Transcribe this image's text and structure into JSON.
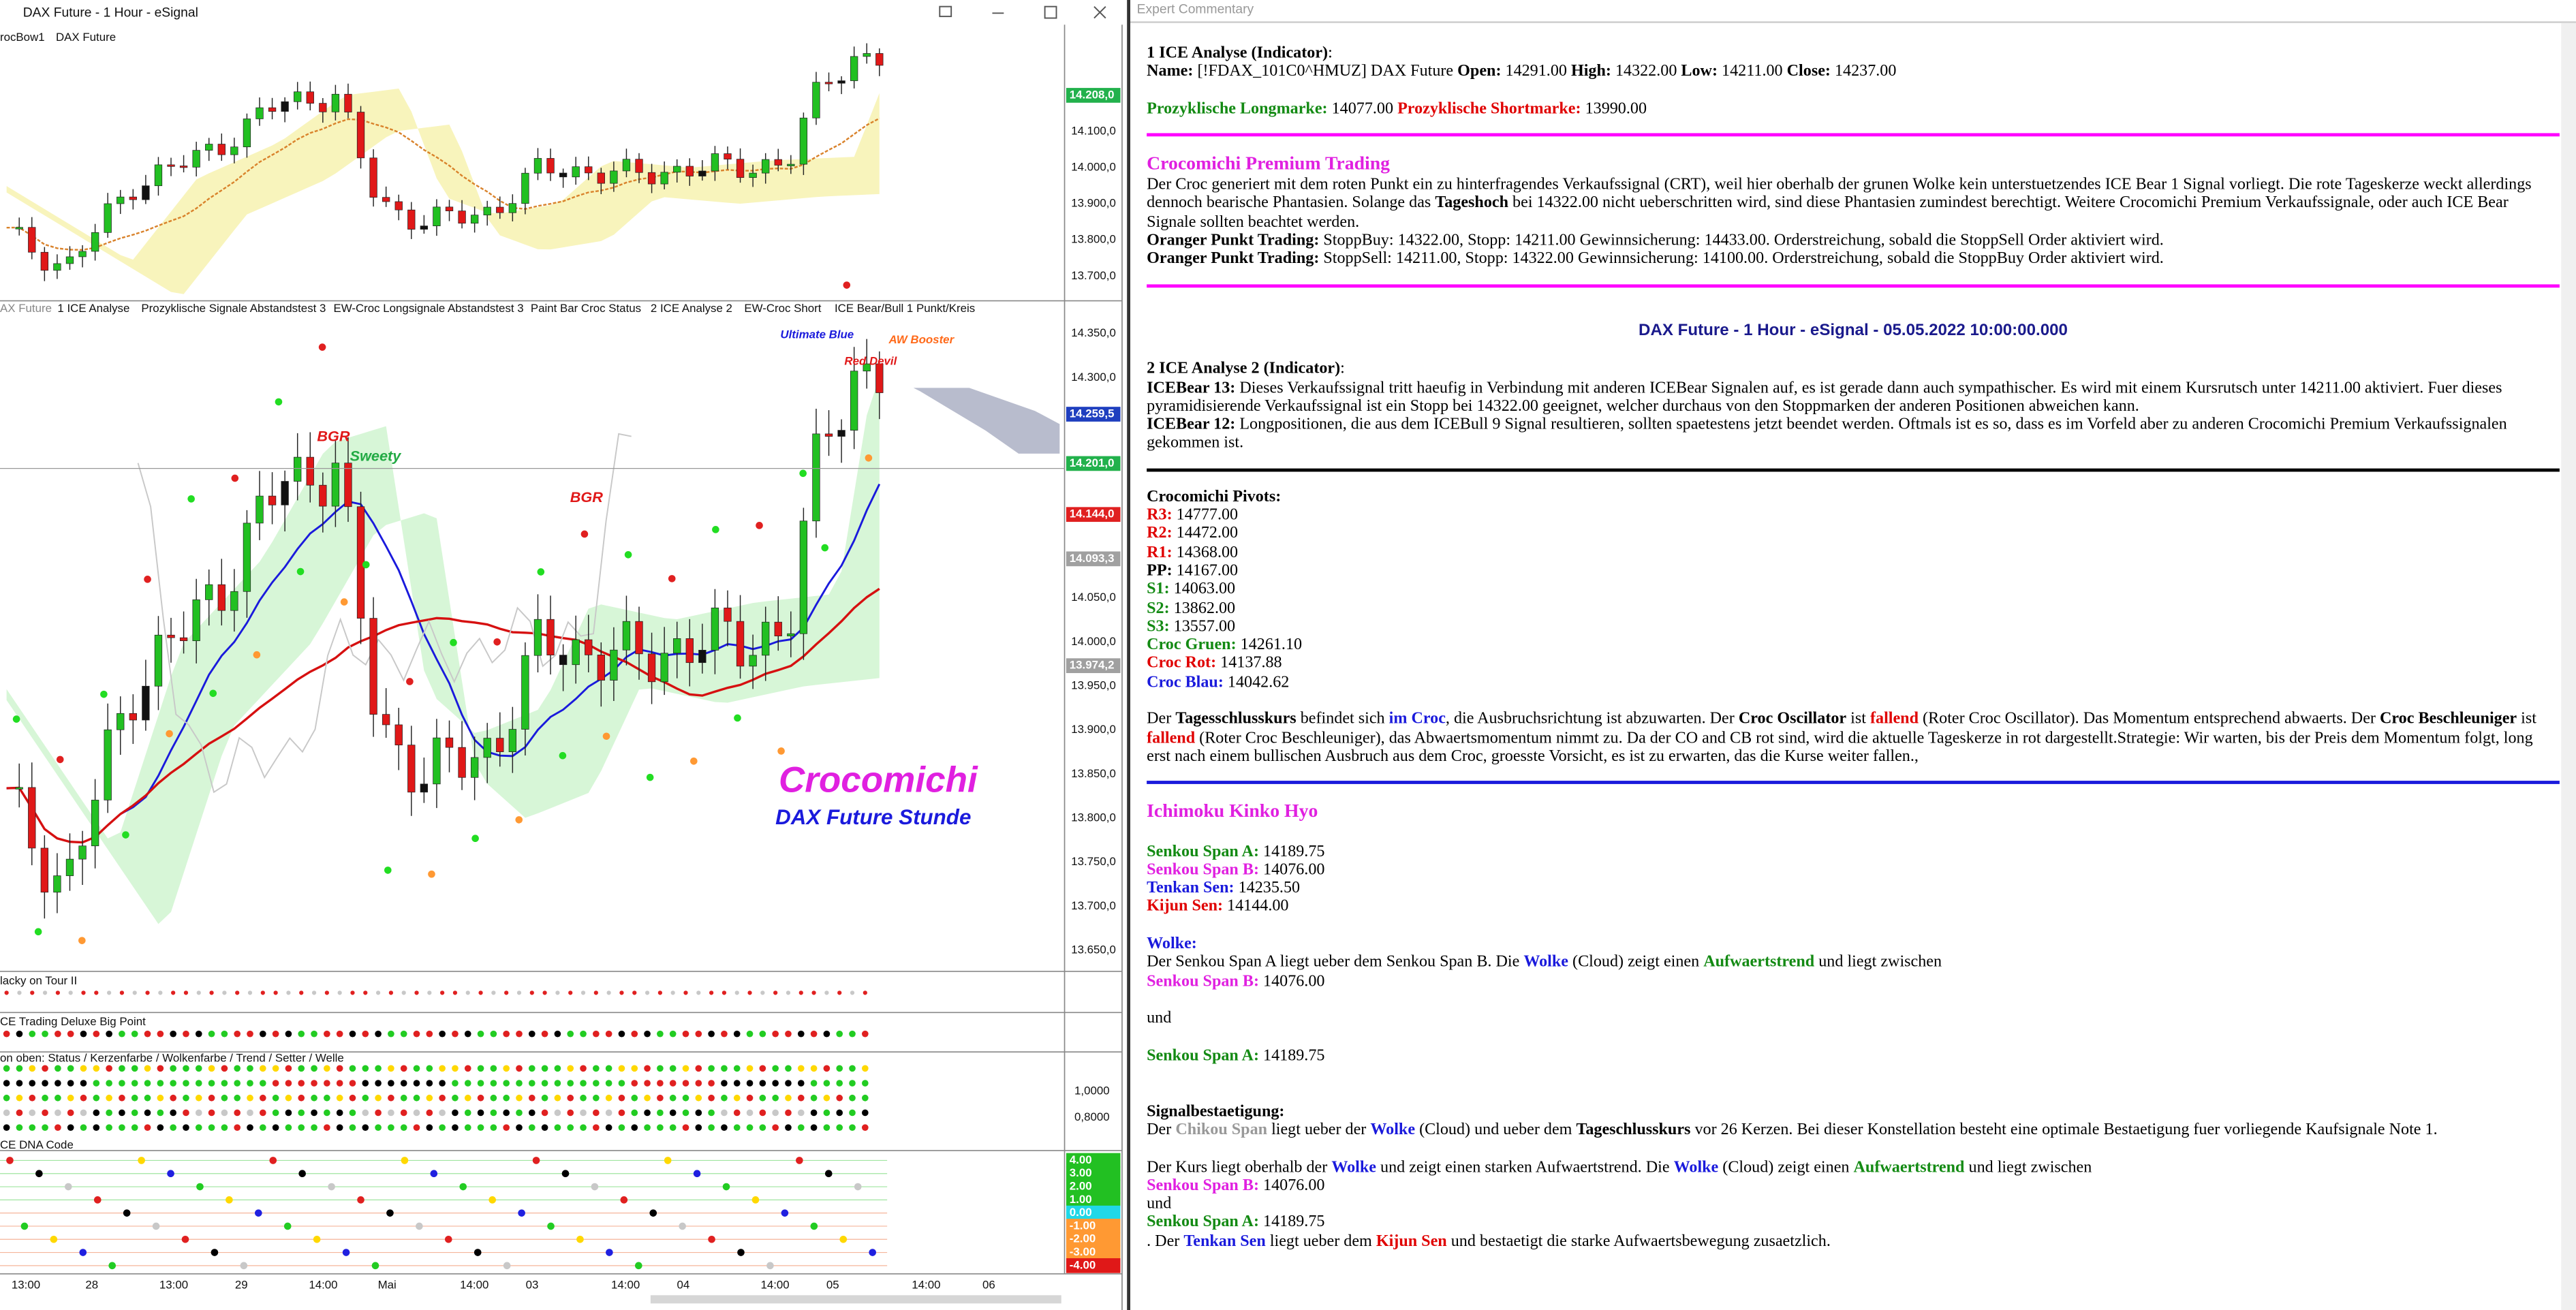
{
  "window": {
    "title": "DAX Future - 1 Hour - eSignal",
    "legend": [
      "rocBow1",
      "DAX Future"
    ]
  },
  "price_panel": {
    "axis_labels": [
      "14.100,0",
      "14.000,0",
      "13.900,0",
      "13.800,0",
      "13.700,0"
    ],
    "last_price": "14.208,0"
  },
  "study_tabs": [
    "AX Future",
    "1 ICE Analyse",
    "Prozyklische Signale Abstandstest 3",
    "EW-Croc Longsignale Abstandstest 3",
    "Paint Bar Croc Status",
    "2 ICE Analyse 2",
    "EW-Croc Short",
    "ICE Bear/Bull 1 Punkt/Kreis"
  ],
  "main_panel": {
    "axis_labels": [
      "14.350,0",
      "14.300,0",
      "14.050,0",
      "14.000,0",
      "13.950,0",
      "13.900,0",
      "13.850,0",
      "13.800,0",
      "13.750,0",
      "13.700,0",
      "13.650,0"
    ],
    "price_boxes": [
      {
        "label": "14.259,5",
        "color": "#1f3fbf"
      },
      {
        "label": "14.201,0",
        "color": "#22b14c"
      },
      {
        "label": "14.144,0",
        "color": "#e02020"
      },
      {
        "label": "14.093,3",
        "color": "#a0a0a0"
      },
      {
        "label": "13.974,2",
        "color": "#a0a0a0"
      }
    ],
    "annotations": [
      "Ultimate Blue",
      "AW Booster",
      "Red Devil",
      "BGR",
      "Sweety",
      "BGR",
      "Crocomichi",
      "DAX Future Stunde"
    ]
  },
  "sub_panels": {
    "titles": [
      "lacky on Tour II",
      "CE Trading Deluxe Big Point",
      "on oben: Status / Kerzenfarbe / Wolkenfarbe / Trend / Setter / Welle",
      "CE DNA Code"
    ],
    "status_labels": [
      "1,0000",
      "0,8000"
    ],
    "dna_labels": [
      "4.00",
      "3.00",
      "2.00",
      "1.00",
      "0.00",
      "-1.00",
      "-2.00",
      "-3.00",
      "-4.00"
    ]
  },
  "x_axis": [
    "13:00",
    "28",
    "13:00",
    "29",
    "14:00",
    "Mai",
    "14:00",
    "03",
    "14:00",
    "04",
    "14:00",
    "05",
    "14:00",
    "06"
  ],
  "commentary": {
    "header": "Expert Commentary",
    "lines": [
      [
        "1 ICE Analyse (Indicator)",
        ":"
      ],
      [
        "Name: ",
        "[!FDAX_101C0^HMUZ] DAX Future ",
        "Open: ",
        "14291.00 ",
        "High: ",
        "14322.00 ",
        "Low: ",
        "14211.00 ",
        "Close: ",
        "14237.00"
      ],
      [
        "Prozyklische Longmarke: ",
        "14077.00 ",
        "Prozyklische Shortmarke: ",
        "13990.00"
      ],
      [
        "Crocomichi Premium Trading"
      ],
      [
        "Der Croc generiert mit dem roten Punkt ein zu hinterfragendes Verkaufssignal (CRT), weil hier oberhalb der grunen Wolke kein unterstuetzendes ICE Bear 1 Signal vorliegt. Die rote Tageskerze weckt allerdings dennoch bearische Phantasien. Solange das ",
        "Tageshoch",
        " bei 14322.00 nicht ueberschritten wird, sind diese Phantasien zumindest berechtigt. Weitere Crocomichi Premium Verkaufssignale, oder auch ICE Bear Signale sollten beachtet werden."
      ],
      [
        "Oranger Punkt Trading:",
        " StoppBuy: 14322.00, Stopp: 14211.00 Gewinnsicherung: 14433.00. Orderstreichung, sobald die StoppSell Order aktiviert wird."
      ],
      [
        "Oranger Punkt Trading:",
        " StoppSell: 14211.00, Stopp: 14322.00 Gewinnsicherung: 14100.00. Orderstreichung, sobald die StoppBuy Order aktiviert wird."
      ],
      [
        "DAX Future - 1 Hour - eSignal - 05.05.2022 10:00:00.000"
      ],
      [
        "2 ICE Analyse 2 (Indicator)",
        ":"
      ],
      [
        "ICEBear 13:",
        " Dieses Verkaufssignal tritt haeufig in Verbindung mit anderen ICEBear Signalen auf, es ist gerade dann auch sympathischer. Es wird mit einem Kursrutsch unter 14211.00 aktiviert. Fuer dieses pyramidisierende Verkaufssignal ist ein Stopp bei 14322.00 geeignet, welcher durchaus von den Stoppmarken der anderen Positionen abweichen kann."
      ],
      [
        "ICEBear 12:",
        " Longpositionen, die aus dem ICEBull 9 Signal resultieren, sollten spaetestens jetzt beendet werden. Oftmals ist es so, dass es im Vorfeld aber zu anderen Crocomichi Premium Verkaufssignalen gekommen ist."
      ],
      [
        "Crocomichi Pivots:"
      ],
      [
        "R3:",
        " 14777.00"
      ],
      [
        "R2:",
        " 14472.00"
      ],
      [
        "R1:",
        " 14368.00"
      ],
      [
        "PP:",
        " 14167.00"
      ],
      [
        "S1:",
        " 14063.00"
      ],
      [
        "S2:",
        " 13862.00"
      ],
      [
        "S3:",
        " 13557.00"
      ],
      [
        "Croc Gruen:",
        " 14261.10"
      ],
      [
        "Croc Rot:",
        " 14137.88"
      ],
      [
        "Croc Blau:",
        " 14042.62"
      ],
      [
        "Der ",
        "Tagesschlusskurs",
        " befindet sich ",
        "im Croc",
        ", die Ausbruchsrichtung ist abzuwarten. Der ",
        "Croc Oscillator",
        " ist ",
        "fallend",
        " (Roter Croc Oscillator). Das Momentum entsprechend abwaerts. Der ",
        "Croc Beschleuniger",
        " ist ",
        "fallend",
        " (Roter Croc Beschleuniger), das Abwaertsmomentum nimmt zu. Da der CO and CB rot sind, wird die aktuelle Tageskerze in rot dargestellt.Strategie: Wir warten, bis der Preis dem Momentum folgt, long erst nach einem bullischen Ausbruch aus dem Croc, groesste Vorsicht, es ist zu erwarten, das die Kurse weiter fallen.,"
      ],
      [
        "Ichimoku Kinko Hyo"
      ],
      [
        "Senkou Span A:",
        " 14189.75"
      ],
      [
        "Senkou Span B:",
        " 14076.00"
      ],
      [
        "Tenkan Sen:",
        " 14235.50"
      ],
      [
        "Kijun Sen:",
        " 14144.00"
      ],
      [
        "Wolke:"
      ],
      [
        "Der Senkou Span A liegt ueber dem Senkou Span B. Die ",
        "Wolke",
        " (Cloud) zeigt einen ",
        "Aufwaertstrend",
        " und liegt zwischen"
      ],
      [
        "Senkou Span B:",
        " 14076.00"
      ],
      [
        "und"
      ],
      [
        "Senkou Span A:",
        " 14189.75"
      ],
      [
        "Signalbestaetigung:"
      ],
      [
        "Der ",
        "Chikou Span",
        " liegt ueber der ",
        "Wolke",
        " (Cloud) und ueber dem ",
        "Tageschlusskurs",
        " vor 26 Kerzen. Bei dieser Konstellation besteht eine optimale Bestaetigung fuer vorliegende Kaufsignale Note 1."
      ],
      [
        "Der Kurs liegt oberhalb der ",
        "Wolke",
        " und zeigt einen starken Aufwaertstrend. Die ",
        "Wolke",
        " (Cloud) zeigt einen ",
        "Aufwaertstrend",
        " und liegt zwischen"
      ],
      [
        "Senkou Span B:",
        " 14076.00"
      ],
      [
        "und"
      ],
      [
        "Senkou Span A:",
        " 14189.75"
      ],
      [
        ". Der ",
        "Tenkan Sen",
        " liegt ueber dem ",
        "Kijun Sen",
        " und bestaetigt die starke Aufwaertsbewegung zusaetzlich."
      ]
    ]
  }
}
